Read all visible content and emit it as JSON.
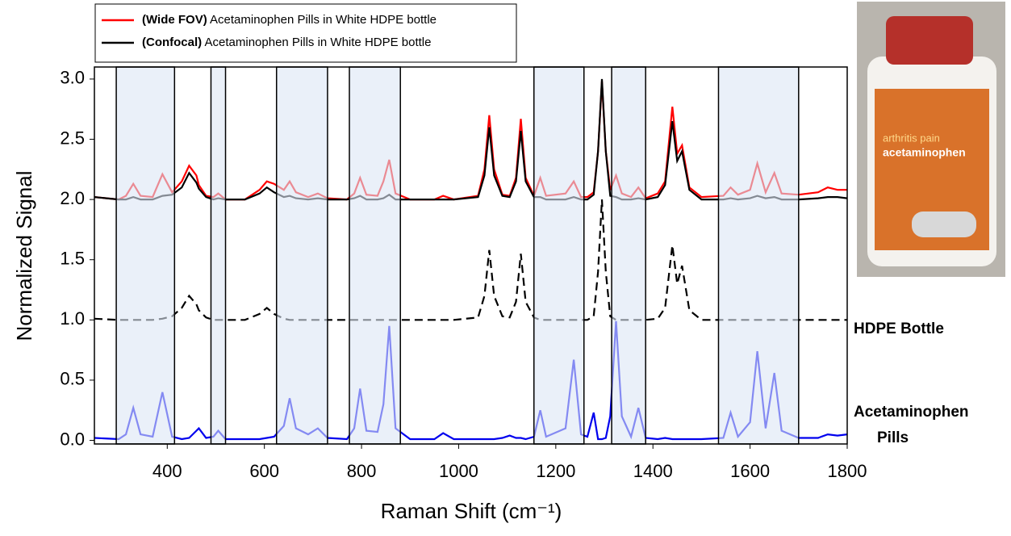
{
  "chart_data": {
    "type": "line",
    "x_label": "Raman Shift (cm⁻¹)",
    "y_label": "Normalized Signal",
    "xlim": [
      250,
      1800
    ],
    "ylim": [
      -0.03,
      3.1
    ],
    "xticks": [
      400,
      600,
      800,
      1000,
      1200,
      1400,
      1600,
      1800
    ],
    "yticks": [
      {
        "value": 0,
        "label": "0.0"
      },
      0.5,
      {
        "value": 1,
        "label": "1.0"
      },
      1.5,
      {
        "value": 2,
        "label": "2.0"
      },
      2.5,
      {
        "value": 3,
        "label": "3.0"
      }
    ],
    "highlight_regions": [
      [
        295,
        415
      ],
      [
        490,
        520
      ],
      [
        625,
        730
      ],
      [
        775,
        880
      ],
      [
        1155,
        1258
      ],
      [
        1315,
        1385
      ],
      [
        1535,
        1700
      ]
    ],
    "highlight_color": "#dce6f5",
    "legend_position": "upper left",
    "x": [
      250,
      300,
      315,
      330,
      345,
      370,
      390,
      410,
      430,
      445,
      460,
      465,
      480,
      495,
      505,
      520,
      560,
      590,
      605,
      620,
      640,
      652,
      665,
      690,
      710,
      730,
      770,
      785,
      797,
      810,
      833,
      845,
      857,
      870,
      900,
      950,
      968,
      990,
      1040,
      1053,
      1063,
      1073,
      1090,
      1105,
      1118,
      1128,
      1138,
      1155,
      1168,
      1180,
      1220,
      1237,
      1252,
      1265,
      1278,
      1287,
      1295,
      1303,
      1312,
      1324,
      1336,
      1355,
      1370,
      1385,
      1410,
      1425,
      1440,
      1450,
      1460,
      1475,
      1500,
      1545,
      1560,
      1575,
      1600,
      1615,
      1632,
      1650,
      1665,
      1700,
      1740,
      1760,
      1780,
      1800
    ],
    "series": [
      {
        "name": "(Wide FOV) Acetaminophen Pills in White HDPE bottle",
        "color": "#ff0000",
        "in_legend": true,
        "values": [
          2.02,
          2.0,
          2.03,
          2.13,
          2.03,
          2.02,
          2.21,
          2.06,
          2.15,
          2.28,
          2.2,
          2.12,
          2.03,
          2.02,
          2.05,
          2.0,
          2.0,
          2.08,
          2.15,
          2.13,
          2.08,
          2.15,
          2.06,
          2.02,
          2.05,
          2.01,
          2.0,
          2.05,
          2.18,
          2.04,
          2.03,
          2.15,
          2.33,
          2.05,
          2.0,
          2.0,
          2.03,
          2.0,
          2.03,
          2.25,
          2.7,
          2.25,
          2.04,
          2.03,
          2.18,
          2.67,
          2.18,
          2.03,
          2.18,
          2.03,
          2.05,
          2.15,
          2.02,
          2.02,
          2.06,
          2.4,
          2.98,
          2.4,
          2.08,
          2.2,
          2.05,
          2.02,
          2.1,
          2.01,
          2.05,
          2.15,
          2.77,
          2.38,
          2.45,
          2.1,
          2.02,
          2.03,
          2.1,
          2.04,
          2.08,
          2.3,
          2.06,
          2.22,
          2.05,
          2.04,
          2.06,
          2.1,
          2.08,
          2.08
        ]
      },
      {
        "name": "(Confocal) Acetaminophen Pills in White HDPE bottle",
        "color": "#000000",
        "in_legend": true,
        "values": [
          2.02,
          2.0,
          2.0,
          2.02,
          2.0,
          2.0,
          2.03,
          2.04,
          2.1,
          2.22,
          2.14,
          2.09,
          2.02,
          2.0,
          2.01,
          2.0,
          2.0,
          2.05,
          2.1,
          2.06,
          2.02,
          2.03,
          2.01,
          2.0,
          2.01,
          2.0,
          2.0,
          2.01,
          2.03,
          2.0,
          2.0,
          2.01,
          2.04,
          2.0,
          2.0,
          2.0,
          2.0,
          2.0,
          2.02,
          2.2,
          2.6,
          2.2,
          2.03,
          2.02,
          2.15,
          2.57,
          2.15,
          2.02,
          2.02,
          2.0,
          2.0,
          2.02,
          2.0,
          2.0,
          2.04,
          2.4,
          3.0,
          2.4,
          2.03,
          2.02,
          2.0,
          2.0,
          2.01,
          2.0,
          2.02,
          2.12,
          2.65,
          2.32,
          2.4,
          2.08,
          2.0,
          2.0,
          2.01,
          2.0,
          2.01,
          2.03,
          2.01,
          2.02,
          2.0,
          2.0,
          2.01,
          2.02,
          2.02,
          2.01
        ]
      },
      {
        "name": "HDPE Bottle",
        "color": "#000000",
        "dashed": true,
        "values": [
          1.01,
          1.0,
          1.0,
          1.0,
          1.0,
          1.0,
          1.01,
          1.03,
          1.1,
          1.2,
          1.13,
          1.08,
          1.02,
          1.0,
          1.0,
          1.0,
          1.0,
          1.05,
          1.1,
          1.05,
          1.01,
          1.0,
          1.0,
          1.0,
          1.0,
          1.0,
          1.0,
          1.0,
          1.0,
          1.0,
          1.0,
          1.0,
          1.0,
          1.0,
          1.0,
          1.0,
          1.0,
          1.0,
          1.02,
          1.2,
          1.58,
          1.2,
          1.03,
          1.02,
          1.15,
          1.55,
          1.15,
          1.02,
          1.0,
          1.0,
          1.0,
          1.0,
          1.0,
          1.0,
          1.03,
          1.4,
          2.0,
          1.4,
          1.03,
          1.0,
          1.0,
          1.0,
          1.0,
          1.0,
          1.01,
          1.1,
          1.62,
          1.3,
          1.45,
          1.08,
          1.0,
          1.0,
          1.0,
          1.0,
          1.0,
          1.0,
          1.0,
          1.0,
          1.0,
          1.0,
          1.0,
          1.0,
          1.0,
          1.0
        ]
      },
      {
        "name": "Acetaminophen Pills",
        "color": "#0000ee",
        "values": [
          0.02,
          0.01,
          0.05,
          0.27,
          0.05,
          0.03,
          0.4,
          0.03,
          0.01,
          0.02,
          0.08,
          0.1,
          0.02,
          0.03,
          0.08,
          0.01,
          0.01,
          0.01,
          0.02,
          0.03,
          0.12,
          0.35,
          0.1,
          0.05,
          0.1,
          0.02,
          0.01,
          0.1,
          0.43,
          0.08,
          0.07,
          0.3,
          0.95,
          0.1,
          0.01,
          0.01,
          0.06,
          0.01,
          0.01,
          0.01,
          0.01,
          0.01,
          0.02,
          0.04,
          0.02,
          0.02,
          0.01,
          0.03,
          0.25,
          0.03,
          0.1,
          0.67,
          0.05,
          0.03,
          0.23,
          0.01,
          0.01,
          0.02,
          0.2,
          0.99,
          0.2,
          0.03,
          0.27,
          0.02,
          0.01,
          0.02,
          0.01,
          0.01,
          0.01,
          0.01,
          0.01,
          0.02,
          0.23,
          0.03,
          0.15,
          0.74,
          0.1,
          0.56,
          0.08,
          0.02,
          0.02,
          0.05,
          0.04,
          0.05
        ]
      }
    ]
  },
  "photo": {
    "texts": [
      "arthritis pain",
      "acetaminophen"
    ]
  }
}
